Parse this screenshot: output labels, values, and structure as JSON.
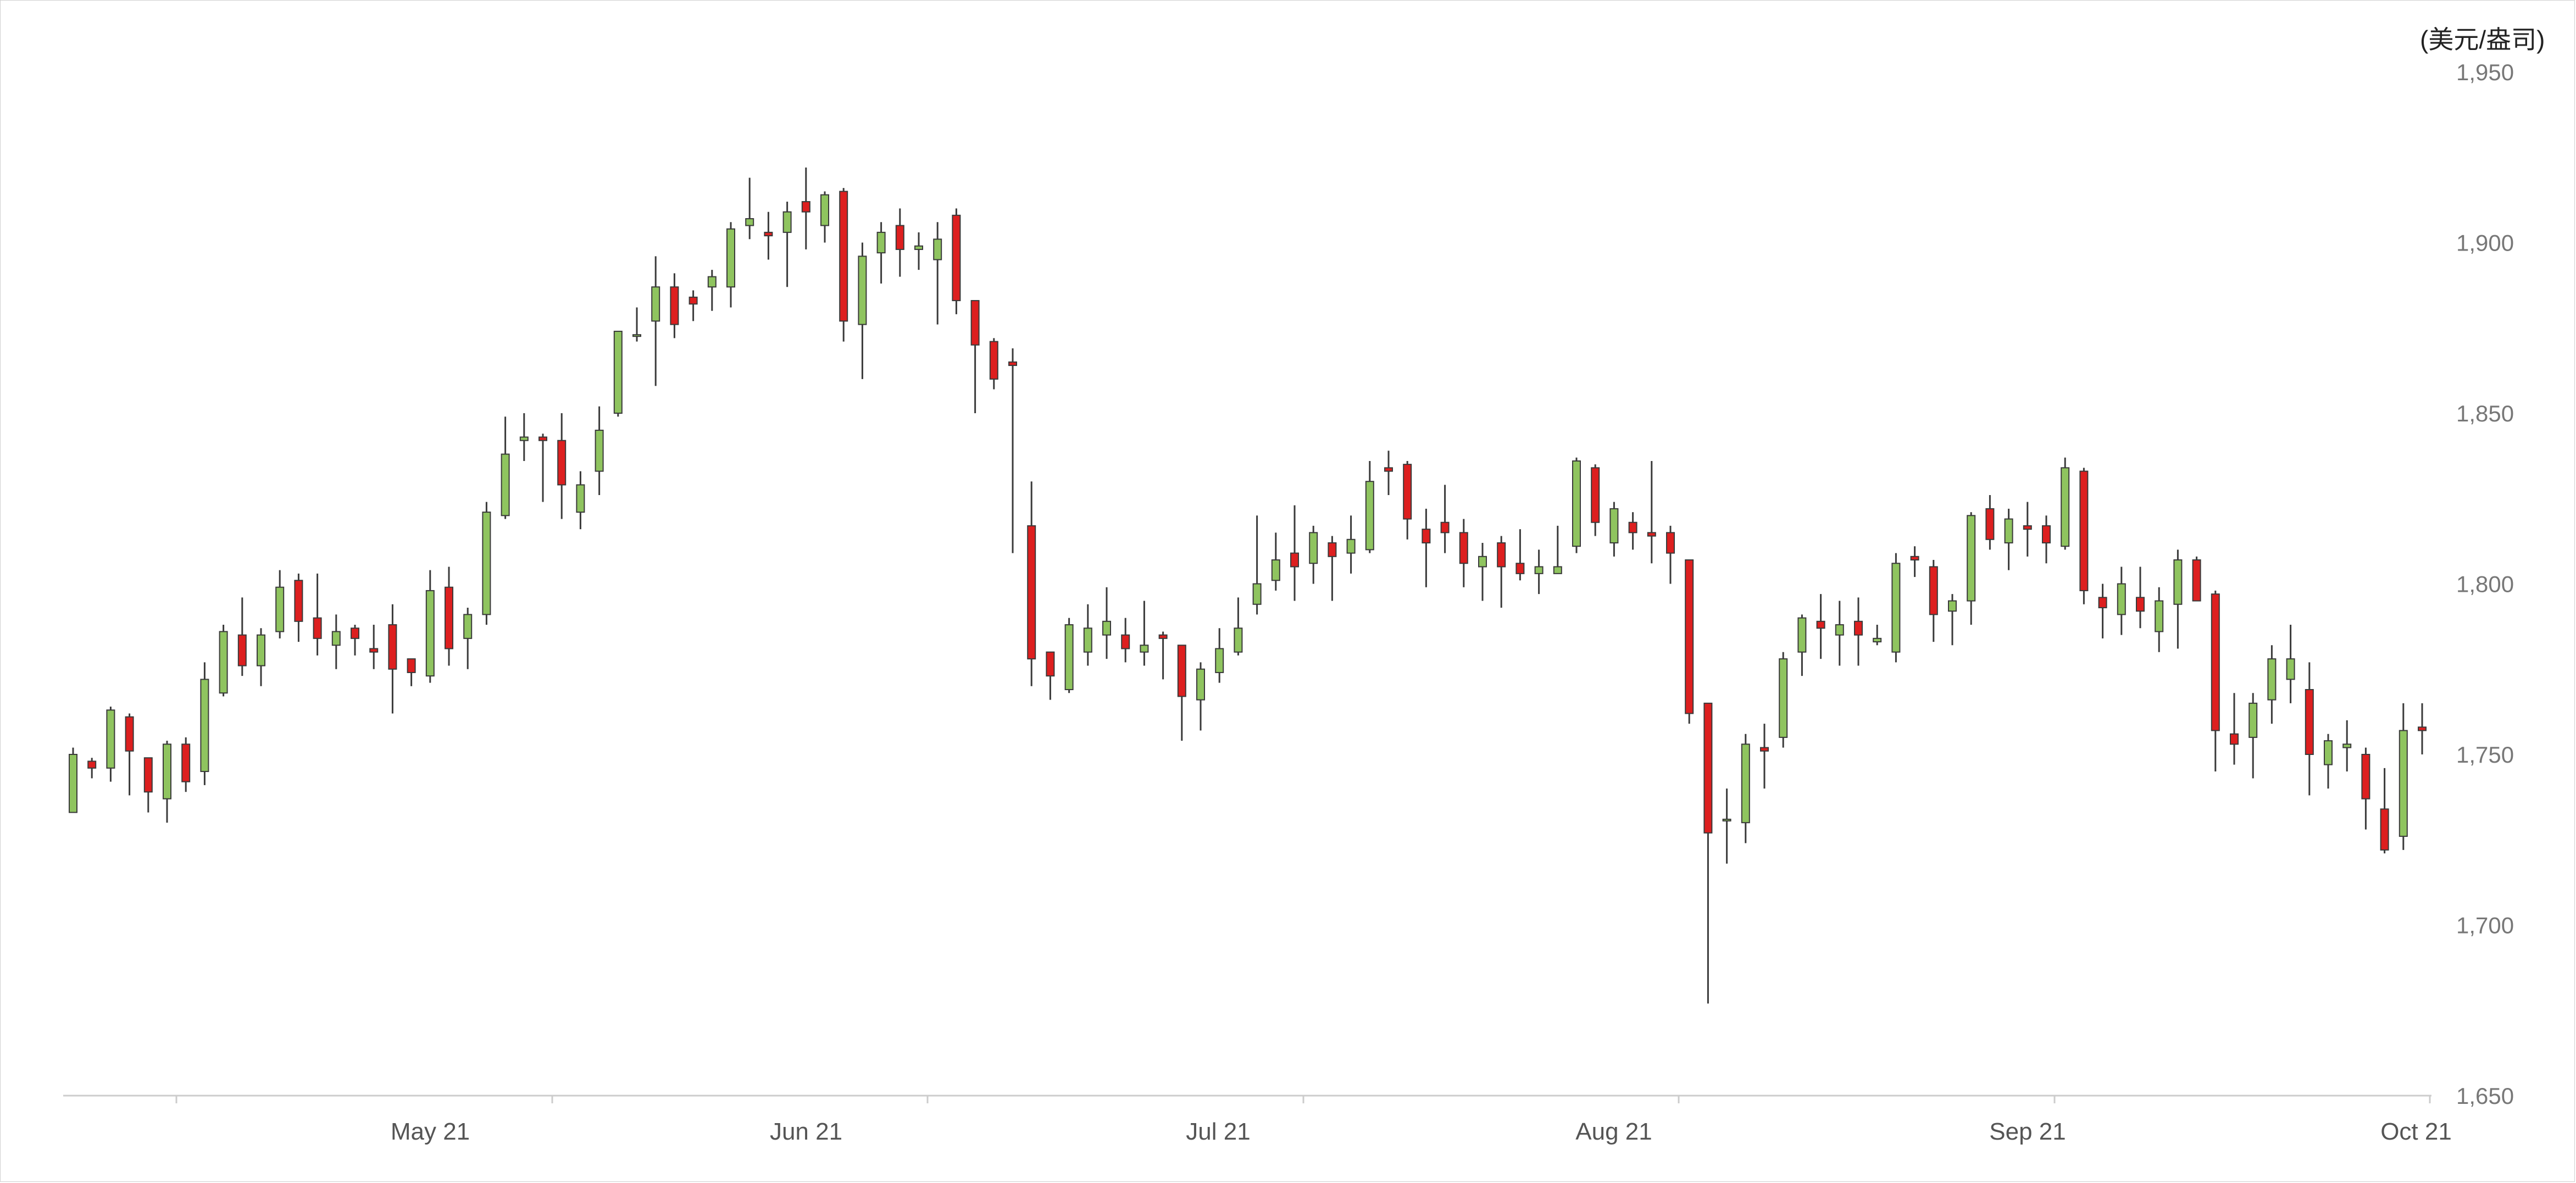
{
  "chart_data": {
    "type": "candlestick",
    "unit_label": "(美元/盎司)",
    "y_axis": {
      "position": "right",
      "ylim": [
        1650,
        1950
      ],
      "ticks": [
        1650,
        1700,
        1750,
        1800,
        1850,
        1900,
        1950
      ],
      "tick_labels": [
        "1,650",
        "1,700",
        "1,750",
        "1,800",
        "1,850",
        "1,900",
        "1,950"
      ]
    },
    "x_axis": {
      "labels": [
        "May 21",
        "Jun 21",
        "Jul 21",
        "Aug 21",
        "Sep 21",
        "Oct 21"
      ]
    },
    "colors": {
      "up": "#8fc45f",
      "down": "#dd1f1f",
      "wick": "#3a3a3a",
      "axis": "#cccccc"
    },
    "grid": false,
    "candles": [
      [
        1733,
        1750,
        1752,
        1733
      ],
      [
        1748,
        1746,
        1749,
        1743
      ],
      [
        1746,
        1763,
        1764,
        1742
      ],
      [
        1761,
        1751,
        1762,
        1738
      ],
      [
        1749,
        1739,
        1749,
        1733
      ],
      [
        1737,
        1753,
        1754,
        1730
      ],
      [
        1753,
        1742,
        1755,
        1739
      ],
      [
        1745,
        1772,
        1777,
        1741
      ],
      [
        1768,
        1786,
        1788,
        1767
      ],
      [
        1785,
        1776,
        1796,
        1773
      ],
      [
        1776,
        1785,
        1787,
        1770
      ],
      [
        1786,
        1799,
        1804,
        1784
      ],
      [
        1801,
        1789,
        1803,
        1783
      ],
      [
        1790,
        1784,
        1803,
        1779
      ],
      [
        1782,
        1786,
        1791,
        1775
      ],
      [
        1787,
        1784,
        1788,
        1779
      ],
      [
        1781,
        1780,
        1788,
        1775
      ],
      [
        1788,
        1775,
        1794,
        1762
      ],
      [
        1778,
        1774,
        1778,
        1770
      ],
      [
        1773,
        1798,
        1804,
        1771
      ],
      [
        1799,
        1781,
        1805,
        1776
      ],
      [
        1784,
        1791,
        1793,
        1775
      ],
      [
        1791,
        1821,
        1824,
        1788
      ],
      [
        1820,
        1838,
        1849,
        1819
      ],
      [
        1842,
        1843,
        1850,
        1836
      ],
      [
        1843,
        1842,
        1844,
        1824
      ],
      [
        1842,
        1829,
        1850,
        1819
      ],
      [
        1821,
        1829,
        1833,
        1816
      ],
      [
        1833,
        1845,
        1852,
        1826
      ],
      [
        1850,
        1874,
        1874,
        1849
      ],
      [
        1873,
        1873,
        1881,
        1871
      ],
      [
        1877,
        1887,
        1896,
        1858
      ],
      [
        1887,
        1876,
        1891,
        1872
      ],
      [
        1884,
        1882,
        1886,
        1877
      ],
      [
        1887,
        1890,
        1892,
        1880
      ],
      [
        1887,
        1904,
        1906,
        1881
      ],
      [
        1905,
        1907,
        1919,
        1901
      ],
      [
        1903,
        1902,
        1909,
        1895
      ],
      [
        1903,
        1909,
        1912,
        1887
      ],
      [
        1912,
        1909,
        1922,
        1898
      ],
      [
        1905,
        1914,
        1915,
        1900
      ],
      [
        1915,
        1877,
        1916,
        1871
      ],
      [
        1876,
        1896,
        1900,
        1860
      ],
      [
        1897,
        1903,
        1906,
        1888
      ],
      [
        1905,
        1898,
        1910,
        1890
      ],
      [
        1898,
        1899,
        1903,
        1892
      ],
      [
        1895,
        1901,
        1906,
        1876
      ],
      [
        1908,
        1883,
        1910,
        1879
      ],
      [
        1883,
        1870,
        1883,
        1850
      ],
      [
        1871,
        1860,
        1872,
        1857
      ],
      [
        1865,
        1864,
        1869,
        1809
      ],
      [
        1817,
        1778,
        1830,
        1770
      ],
      [
        1780,
        1773,
        1780,
        1766
      ],
      [
        1769,
        1788,
        1790,
        1768
      ],
      [
        1780,
        1787,
        1794,
        1776
      ],
      [
        1785,
        1789,
        1799,
        1778
      ],
      [
        1785,
        1781,
        1790,
        1777
      ],
      [
        1780,
        1782,
        1795,
        1776
      ],
      [
        1785,
        1784,
        1786,
        1772
      ],
      [
        1782,
        1767,
        1782,
        1754
      ],
      [
        1766,
        1775,
        1777,
        1757
      ],
      [
        1774,
        1781,
        1787,
        1771
      ],
      [
        1780,
        1787,
        1796,
        1779
      ],
      [
        1794,
        1800,
        1820,
        1791
      ],
      [
        1801,
        1807,
        1815,
        1798
      ],
      [
        1809,
        1805,
        1823,
        1795
      ],
      [
        1806,
        1815,
        1817,
        1800
      ],
      [
        1812,
        1808,
        1814,
        1795
      ],
      [
        1809,
        1813,
        1820,
        1803
      ],
      [
        1810,
        1830,
        1836,
        1809
      ],
      [
        1834,
        1833,
        1839,
        1826
      ],
      [
        1835,
        1819,
        1836,
        1813
      ],
      [
        1816,
        1812,
        1822,
        1799
      ],
      [
        1818,
        1815,
        1829,
        1809
      ],
      [
        1815,
        1806,
        1819,
        1799
      ],
      [
        1805,
        1808,
        1812,
        1795
      ],
      [
        1812,
        1805,
        1814,
        1793
      ],
      [
        1806,
        1803,
        1816,
        1801
      ],
      [
        1803,
        1805,
        1810,
        1797
      ],
      [
        1803,
        1805,
        1817,
        1803
      ],
      [
        1811,
        1836,
        1837,
        1809
      ],
      [
        1834,
        1818,
        1835,
        1814
      ],
      [
        1812,
        1822,
        1824,
        1808
      ],
      [
        1818,
        1815,
        1821,
        1810
      ],
      [
        1815,
        1814,
        1836,
        1806
      ],
      [
        1815,
        1809,
        1817,
        1800
      ],
      [
        1807,
        1762,
        1807,
        1759
      ],
      [
        1765,
        1727,
        1765,
        1677
      ],
      [
        1731,
        1731,
        1740,
        1718
      ],
      [
        1730,
        1753,
        1756,
        1724
      ],
      [
        1752,
        1751,
        1759,
        1740
      ],
      [
        1755,
        1778,
        1780,
        1752
      ],
      [
        1780,
        1790,
        1791,
        1773
      ],
      [
        1789,
        1787,
        1797,
        1778
      ],
      [
        1785,
        1788,
        1795,
        1776
      ],
      [
        1789,
        1785,
        1796,
        1776
      ],
      [
        1783,
        1784,
        1788,
        1782
      ],
      [
        1780,
        1806,
        1809,
        1777
      ],
      [
        1808,
        1807,
        1811,
        1802
      ],
      [
        1805,
        1791,
        1807,
        1783
      ],
      [
        1792,
        1795,
        1797,
        1782
      ],
      [
        1795,
        1820,
        1821,
        1788
      ],
      [
        1822,
        1813,
        1826,
        1810
      ],
      [
        1812,
        1819,
        1822,
        1804
      ],
      [
        1817,
        1816,
        1824,
        1808
      ],
      [
        1817,
        1812,
        1820,
        1806
      ],
      [
        1811,
        1834,
        1837,
        1810
      ],
      [
        1833,
        1798,
        1834,
        1794
      ],
      [
        1796,
        1793,
        1800,
        1784
      ],
      [
        1791,
        1800,
        1805,
        1785
      ],
      [
        1796,
        1792,
        1805,
        1787
      ],
      [
        1786,
        1795,
        1799,
        1780
      ],
      [
        1794,
        1807,
        1810,
        1781
      ],
      [
        1807,
        1795,
        1808,
        1795
      ],
      [
        1797,
        1757,
        1798,
        1745
      ],
      [
        1756,
        1753,
        1768,
        1747
      ],
      [
        1755,
        1765,
        1768,
        1743
      ],
      [
        1766,
        1778,
        1782,
        1759
      ],
      [
        1772,
        1778,
        1788,
        1765
      ],
      [
        1769,
        1750,
        1777,
        1738
      ],
      [
        1747,
        1754,
        1756,
        1740
      ],
      [
        1752,
        1753,
        1760,
        1745
      ],
      [
        1750,
        1737,
        1752,
        1728
      ],
      [
        1734,
        1722,
        1746,
        1721
      ],
      [
        1726,
        1757,
        1765,
        1722
      ],
      [
        1758,
        1757,
        1765,
        1750
      ]
    ]
  }
}
